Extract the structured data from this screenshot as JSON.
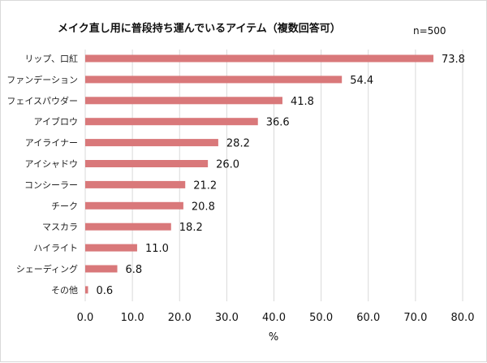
{
  "chart_data": {
    "type": "bar",
    "orientation": "horizontal",
    "title": "メイク直し用に普段持ち運んでいるアイテム（複数回答可）",
    "subtitle": "n=500",
    "categories": [
      "リップ、口紅",
      "ファンデーション",
      "フェイスパウダー",
      "アイブロウ",
      "アイライナー",
      "アイシャドウ",
      "コンシーラー",
      "チーク",
      "マスカラ",
      "ハイライト",
      "シェーディング",
      "その他"
    ],
    "values": [
      73.8,
      54.4,
      41.8,
      36.6,
      28.2,
      26.0,
      21.2,
      20.8,
      18.2,
      11.0,
      6.8,
      0.6
    ],
    "value_labels": [
      "73.8",
      "54.4",
      "41.8",
      "36.6",
      "28.2",
      "26.0",
      "21.2",
      "20.8",
      "18.2",
      "11.0",
      "6.8",
      "0.6"
    ],
    "xlabel": "%",
    "ylabel": "",
    "xlim": [
      0,
      80
    ],
    "x_ticks": [
      "0.0",
      "10.0",
      "20.0",
      "30.0",
      "40.0",
      "50.0",
      "60.0",
      "70.0",
      "80.0"
    ],
    "grid": "vertical",
    "legend": "none",
    "bar_color": "#d9787a",
    "grid_color": "#d9d9d9"
  }
}
